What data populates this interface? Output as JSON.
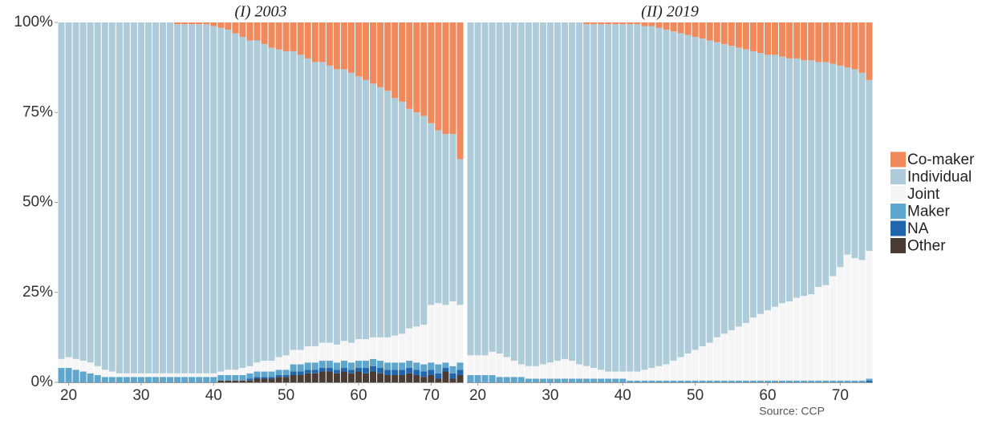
{
  "chart_data": [
    {
      "type": "stacked-bar",
      "title": "(I) 2003",
      "x": [
        19,
        20,
        21,
        22,
        23,
        24,
        25,
        26,
        27,
        28,
        29,
        30,
        31,
        32,
        33,
        34,
        35,
        36,
        37,
        38,
        39,
        40,
        41,
        42,
        43,
        44,
        45,
        46,
        47,
        48,
        49,
        50,
        51,
        52,
        53,
        54,
        55,
        56,
        57,
        58,
        59,
        60,
        61,
        62,
        63,
        64,
        65,
        66,
        67,
        68,
        69,
        70,
        71,
        72,
        73,
        74
      ],
      "xlim": [
        18.5,
        74.5
      ],
      "xticks": [
        20,
        30,
        40,
        50,
        60,
        70
      ],
      "ylim": [
        0,
        100
      ],
      "yticks": [
        {
          "value": 0,
          "label": "0%"
        },
        {
          "value": 25,
          "label": "25%"
        },
        {
          "value": 50,
          "label": "50%"
        },
        {
          "value": 75,
          "label": "75%"
        },
        {
          "value": 100,
          "label": "100%"
        }
      ],
      "series": [
        {
          "name": "Other",
          "color": "#4a3c32",
          "values": [
            0,
            0,
            0,
            0,
            0,
            0,
            0,
            0,
            0,
            0,
            0,
            0,
            0,
            0,
            0,
            0,
            0,
            0,
            0,
            0,
            0,
            0,
            0.5,
            0.5,
            0.5,
            0.5,
            0.5,
            1,
            1,
            1,
            1.5,
            1.5,
            2,
            2,
            2.5,
            2.5,
            3,
            3,
            2.5,
            3,
            2.5,
            3,
            2.5,
            3,
            2.5,
            2,
            2,
            2,
            2.5,
            2,
            1.5,
            2,
            1,
            3,
            1,
            2
          ]
        },
        {
          "name": "NA",
          "color": "#2166ac",
          "values": [
            0,
            0,
            0,
            0,
            0,
            0,
            0,
            0,
            0,
            0,
            0,
            0,
            0,
            0,
            0,
            0,
            0,
            0,
            0,
            0,
            0,
            0,
            0,
            0,
            0,
            0,
            0.5,
            0.5,
            0.5,
            0.5,
            0.5,
            0.5,
            1,
            1,
            1,
            1,
            1,
            1,
            1,
            1,
            1,
            1,
            1.5,
            1.5,
            1.5,
            1.5,
            1.5,
            1.5,
            1.5,
            1.5,
            1.5,
            1.5,
            1.5,
            1,
            1.5,
            1.5
          ]
        },
        {
          "name": "Maker",
          "color": "#5fa6cc",
          "values": [
            4,
            4,
            3.5,
            3,
            2.5,
            2,
            1.5,
            1.5,
            1.5,
            1.5,
            1.5,
            1.5,
            1.5,
            1.5,
            1.5,
            1.5,
            1.5,
            1.5,
            1.5,
            1.5,
            1.5,
            1.5,
            1.5,
            1.5,
            1.5,
            1.5,
            1.5,
            1.5,
            1.5,
            1.5,
            1.5,
            1.5,
            2,
            2,
            2,
            2,
            2,
            2,
            2,
            2,
            2,
            2,
            2,
            2,
            2,
            2,
            2,
            2,
            2,
            2,
            2,
            2,
            2.5,
            1.5,
            2,
            2
          ]
        },
        {
          "name": "Joint",
          "color": "#f5f5f5",
          "values": [
            2.5,
            3,
            3,
            3,
            3,
            2.5,
            2,
            1.5,
            1,
            1,
            1,
            1,
            1,
            1,
            1,
            1,
            1,
            1,
            1,
            1,
            1,
            1,
            1,
            1.5,
            1.5,
            2,
            2,
            2.5,
            3,
            3,
            3.5,
            4,
            4,
            4,
            4.5,
            4.5,
            5,
            5,
            5,
            5.5,
            5.5,
            6,
            6,
            6,
            6.5,
            7,
            7.5,
            8,
            9,
            10,
            11,
            16,
            17,
            16,
            18,
            16
          ]
        },
        {
          "name": "Individual",
          "color": "#aecbd9",
          "values": [
            93.5,
            93,
            93.5,
            94,
            94.5,
            95.5,
            96.5,
            97,
            97.5,
            97.5,
            97.5,
            97.5,
            97.5,
            97.5,
            97.5,
            97.5,
            97,
            97,
            97,
            97,
            97,
            96.5,
            95.5,
            94.5,
            93.5,
            92,
            90.5,
            89.5,
            88,
            87,
            85.5,
            84.5,
            83,
            82,
            80,
            79,
            78,
            77,
            76.5,
            75.5,
            75,
            73,
            72,
            70.5,
            69.5,
            68.5,
            66,
            64.5,
            61,
            59.5,
            58,
            50.5,
            48,
            47.5,
            46.5,
            40.5
          ]
        },
        {
          "name": "Co-maker",
          "color": "#f08a5d",
          "values": [
            0,
            0,
            0,
            0,
            0,
            0,
            0,
            0,
            0,
            0,
            0,
            0,
            0,
            0,
            0,
            0,
            0.5,
            0.5,
            0.5,
            0.5,
            0.5,
            1,
            1.5,
            2,
            3,
            4,
            5,
            5,
            6,
            7,
            7.5,
            8,
            8,
            9,
            10,
            11,
            11,
            12,
            13,
            13,
            14,
            15,
            16,
            17,
            18,
            19,
            21,
            22,
            24,
            25,
            26,
            28,
            30,
            31,
            31,
            38
          ]
        }
      ]
    },
    {
      "type": "stacked-bar",
      "title": "(II) 2019",
      "x": [
        19,
        20,
        21,
        22,
        23,
        24,
        25,
        26,
        27,
        28,
        29,
        30,
        31,
        32,
        33,
        34,
        35,
        36,
        37,
        38,
        39,
        40,
        41,
        42,
        43,
        44,
        45,
        46,
        47,
        48,
        49,
        50,
        51,
        52,
        53,
        54,
        55,
        56,
        57,
        58,
        59,
        60,
        61,
        62,
        63,
        64,
        65,
        66,
        67,
        68,
        69,
        70,
        71,
        72,
        73,
        74
      ],
      "xlim": [
        18.5,
        74.5
      ],
      "xticks": [
        20,
        30,
        40,
        50,
        60,
        70
      ],
      "ylim": [
        0,
        100
      ],
      "series": [
        {
          "name": "Other",
          "color": "#4a3c32",
          "values": [
            0,
            0,
            0,
            0,
            0,
            0,
            0,
            0,
            0,
            0,
            0,
            0,
            0,
            0,
            0,
            0,
            0,
            0,
            0,
            0,
            0,
            0,
            0,
            0,
            0,
            0,
            0,
            0,
            0,
            0,
            0,
            0,
            0,
            0,
            0,
            0,
            0,
            0,
            0,
            0,
            0,
            0,
            0,
            0,
            0,
            0,
            0,
            0,
            0,
            0,
            0,
            0,
            0,
            0,
            0,
            0
          ]
        },
        {
          "name": "NA",
          "color": "#2166ac",
          "values": [
            0,
            0,
            0,
            0,
            0,
            0,
            0,
            0,
            0,
            0,
            0,
            0,
            0,
            0,
            0,
            0,
            0,
            0,
            0,
            0,
            0,
            0,
            0,
            0,
            0,
            0,
            0,
            0,
            0,
            0,
            0,
            0,
            0,
            0,
            0,
            0,
            0,
            0,
            0,
            0,
            0,
            0,
            0,
            0,
            0,
            0,
            0,
            0,
            0,
            0,
            0,
            0,
            0,
            0,
            0,
            0.5
          ]
        },
        {
          "name": "Maker",
          "color": "#5fa6cc",
          "values": [
            2,
            2,
            2,
            2,
            1.5,
            1.5,
            1.5,
            1.5,
            1,
            1,
            1,
            1,
            1,
            1,
            1,
            1,
            1,
            1,
            1,
            1,
            1,
            1,
            0.5,
            0.5,
            0.5,
            0.5,
            0.5,
            0.5,
            0.5,
            0.5,
            0.5,
            0.5,
            0.5,
            0.5,
            0.5,
            0.5,
            0.5,
            0.5,
            0.5,
            0.5,
            0.5,
            0.5,
            0.5,
            0.5,
            0.5,
            0.5,
            0.5,
            0.5,
            0.5,
            0.5,
            0.5,
            0.5,
            0.5,
            0.5,
            0.5,
            0.5
          ]
        },
        {
          "name": "Joint",
          "color": "#f5f5f5",
          "values": [
            5.5,
            5.5,
            5.5,
            6.5,
            6.5,
            5.5,
            4.5,
            3.5,
            3.5,
            3.5,
            4,
            4.5,
            5,
            5.5,
            5,
            4,
            3.5,
            3,
            2.5,
            2,
            2,
            2,
            2.5,
            2.5,
            3,
            3.5,
            4,
            4.5,
            5.5,
            6.5,
            7.5,
            8.5,
            9.5,
            10.5,
            12,
            13,
            14,
            15,
            16,
            17.5,
            18.5,
            19.5,
            20.5,
            21.5,
            22,
            23,
            23.5,
            24,
            26,
            26.5,
            29,
            31.5,
            35,
            34,
            33.5,
            35.5
          ]
        },
        {
          "name": "Individual",
          "color": "#aecbd9",
          "values": [
            92.5,
            92.5,
            92.5,
            91.5,
            92,
            93,
            94,
            95,
            95.5,
            95.5,
            95,
            94.5,
            94,
            93.5,
            94,
            95,
            95,
            95.5,
            96,
            96.5,
            96.5,
            96.5,
            96.5,
            96.5,
            95.5,
            95,
            94,
            93,
            91.5,
            90,
            88.5,
            87,
            85.5,
            84,
            82,
            80.5,
            79,
            77.5,
            76,
            74,
            72.5,
            71,
            70,
            68.5,
            67.5,
            66.5,
            65.5,
            65,
            62.5,
            62,
            59,
            56,
            52,
            52.5,
            52,
            47.5
          ]
        },
        {
          "name": "Co-maker",
          "color": "#f08a5d",
          "values": [
            0,
            0,
            0,
            0,
            0,
            0,
            0,
            0,
            0,
            0,
            0,
            0,
            0,
            0,
            0,
            0,
            0.5,
            0.5,
            0.5,
            0.5,
            0.5,
            0.5,
            0.5,
            0.5,
            1,
            1,
            1.5,
            2,
            2.5,
            3,
            3.5,
            4,
            4.5,
            5,
            5.5,
            6,
            6.5,
            7,
            7.5,
            8,
            8.5,
            9,
            9,
            9.5,
            10,
            10,
            10.5,
            10.5,
            11,
            11,
            11.5,
            12,
            12.5,
            13,
            14,
            16
          ]
        }
      ]
    }
  ],
  "source": "Source: CCP"
}
